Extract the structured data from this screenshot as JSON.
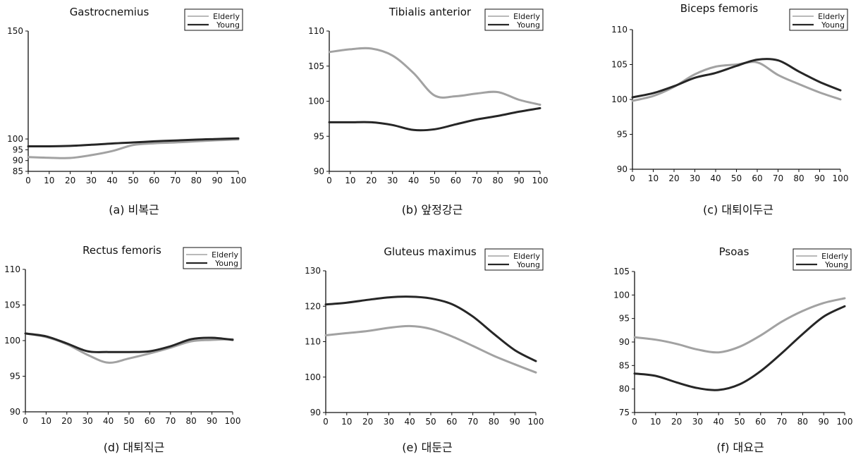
{
  "chart_data": [
    {
      "type": "line",
      "title": "Gastrocnemius",
      "caption": "(a) 비복근",
      "x": [
        0,
        10,
        20,
        30,
        40,
        50,
        60,
        70,
        80,
        90,
        100
      ],
      "xlim": [
        0,
        100
      ],
      "ylim": [
        85,
        150
      ],
      "yticks": [
        85,
        90,
        95,
        100,
        150
      ],
      "legend_position": "top-right",
      "series": [
        {
          "name": "Elderly",
          "values": [
            91.6,
            91.3,
            91.2,
            92.5,
            94.4,
            97.2,
            98.0,
            98.4,
            98.9,
            99.4,
            99.8
          ]
        },
        {
          "name": "Young",
          "values": [
            96.6,
            96.6,
            96.8,
            97.3,
            97.9,
            98.4,
            98.9,
            99.3,
            99.7,
            100.0,
            100.3
          ]
        }
      ]
    },
    {
      "type": "line",
      "title": "Tibialis anterior",
      "caption": "(b) 앞정강근",
      "x": [
        0,
        10,
        20,
        30,
        40,
        50,
        60,
        70,
        80,
        90,
        100
      ],
      "xlim": [
        0,
        100
      ],
      "ylim": [
        90,
        110
      ],
      "yticks": [
        90,
        95,
        100,
        105,
        110
      ],
      "legend_position": "top-right",
      "series": [
        {
          "name": "Elderly",
          "values": [
            107.0,
            107.4,
            107.5,
            106.5,
            104.0,
            100.8,
            100.7,
            101.1,
            101.3,
            100.2,
            99.5
          ]
        },
        {
          "name": "Young",
          "values": [
            97.0,
            97.0,
            97.0,
            96.6,
            95.9,
            96.0,
            96.7,
            97.4,
            97.9,
            98.5,
            99.0
          ]
        }
      ]
    },
    {
      "type": "line",
      "title": "Biceps femoris",
      "caption": "(c) 대퇴이두근",
      "x": [
        0,
        10,
        20,
        30,
        40,
        50,
        60,
        70,
        80,
        90,
        100
      ],
      "xlim": [
        0,
        100
      ],
      "ylim": [
        90,
        110
      ],
      "yticks": [
        90,
        95,
        100,
        105,
        110
      ],
      "legend_position": "top-right",
      "series": [
        {
          "name": "Elderly",
          "values": [
            99.8,
            100.5,
            101.8,
            103.6,
            104.7,
            105.0,
            105.3,
            103.5,
            102.2,
            101.0,
            100.0
          ]
        },
        {
          "name": "Young",
          "values": [
            100.3,
            100.9,
            101.9,
            103.1,
            103.8,
            104.8,
            105.7,
            105.6,
            104.0,
            102.5,
            101.3
          ]
        }
      ]
    },
    {
      "type": "line",
      "title": "Rectus femoris",
      "caption": "(d) 대퇴직근",
      "x": [
        0,
        10,
        20,
        30,
        40,
        50,
        60,
        70,
        80,
        90,
        100
      ],
      "xlim": [
        0,
        100
      ],
      "ylim": [
        90,
        110
      ],
      "yticks": [
        90,
        95,
        100,
        105,
        110
      ],
      "legend_position": "top-right",
      "series": [
        {
          "name": "Elderly",
          "values": [
            101.0,
            100.5,
            99.5,
            98.0,
            96.9,
            97.5,
            98.2,
            99.0,
            99.9,
            100.1,
            100.2
          ]
        },
        {
          "name": "Young",
          "values": [
            101.0,
            100.6,
            99.6,
            98.5,
            98.4,
            98.4,
            98.5,
            99.2,
            100.2,
            100.4,
            100.1
          ]
        }
      ]
    },
    {
      "type": "line",
      "title": "Gluteus maximus",
      "caption": "(e) 대둔근",
      "x": [
        0,
        10,
        20,
        30,
        40,
        50,
        60,
        70,
        80,
        90,
        100
      ],
      "xlim": [
        0,
        100
      ],
      "ylim": [
        90,
        130
      ],
      "yticks": [
        90,
        100,
        110,
        120,
        130
      ],
      "legend_position": "top-right",
      "series": [
        {
          "name": "Elderly",
          "values": [
            111.8,
            112.4,
            113.0,
            113.9,
            114.4,
            113.6,
            111.5,
            108.8,
            106.0,
            103.6,
            101.3
          ]
        },
        {
          "name": "Young",
          "values": [
            120.5,
            121.0,
            121.8,
            122.5,
            122.7,
            122.2,
            120.6,
            117.1,
            112.2,
            107.6,
            104.5
          ]
        }
      ]
    },
    {
      "type": "line",
      "title": "Psoas",
      "caption": "(f) 대요근",
      "x": [
        0,
        10,
        20,
        30,
        40,
        50,
        60,
        70,
        80,
        90,
        100
      ],
      "xlim": [
        0,
        100
      ],
      "ylim": [
        75,
        105
      ],
      "yticks": [
        75,
        80,
        85,
        90,
        95,
        100,
        105
      ],
      "legend_position": "top-right",
      "series": [
        {
          "name": "Elderly",
          "values": [
            91.0,
            90.5,
            89.6,
            88.4,
            87.8,
            89.0,
            91.4,
            94.3,
            96.6,
            98.3,
            99.3
          ]
        },
        {
          "name": "Young",
          "values": [
            83.3,
            82.8,
            81.4,
            80.2,
            79.8,
            81.0,
            83.8,
            87.6,
            91.7,
            95.4,
            97.6
          ]
        }
      ]
    }
  ],
  "colors": {
    "elderly": "#a2a2a2",
    "young": "#262626",
    "axis": "#111111"
  }
}
